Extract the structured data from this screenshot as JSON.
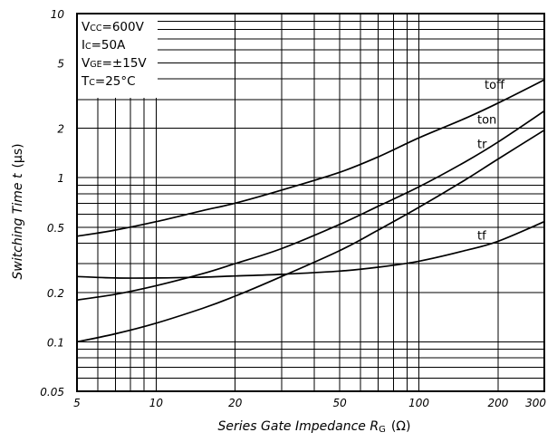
{
  "chart_data": {
    "type": "line",
    "x_scale": "log",
    "y_scale": "log",
    "xlim": [
      5,
      300
    ],
    "ylim": [
      0.05,
      10
    ],
    "grid": true,
    "xlabel": {
      "main": "Series Gate Impedance R",
      "subscript": "G",
      "unit": "(Ω)"
    },
    "ylabel": {
      "main": "Switching Time t",
      "unit": "(μs)"
    },
    "x_ticks": [
      {
        "value": 5,
        "label": "5"
      },
      {
        "value": 10,
        "label": "10"
      },
      {
        "value": 20,
        "label": "20"
      },
      {
        "value": 50,
        "label": "50"
      },
      {
        "value": 100,
        "label": "100"
      },
      {
        "value": 200,
        "label": "200"
      },
      {
        "value": 300,
        "label": "300"
      }
    ],
    "y_ticks": [
      {
        "value": 0.05,
        "label": "0.05"
      },
      {
        "value": 0.1,
        "label": "0.1"
      },
      {
        "value": 0.2,
        "label": "0.2"
      },
      {
        "value": 0.5,
        "label": "0.5"
      },
      {
        "value": 1,
        "label": "1"
      },
      {
        "value": 2,
        "label": "2"
      },
      {
        "value": 5,
        "label": "5"
      },
      {
        "value": 10,
        "label": "10"
      }
    ],
    "conditions": [
      {
        "main": "V",
        "sub": "CC",
        "rest": "=600V"
      },
      {
        "main": "I",
        "sub": "C",
        "rest": "=50A"
      },
      {
        "main": "V",
        "sub": "GE",
        "rest": "=±15V"
      },
      {
        "main": "T",
        "sub": "C",
        "rest": "=25°C"
      }
    ],
    "series": [
      {
        "name": "toff",
        "x": [
          5,
          7,
          10,
          15,
          20,
          30,
          50,
          70,
          100,
          150,
          200,
          300
        ],
        "y": [
          0.44,
          0.48,
          0.54,
          0.63,
          0.7,
          0.84,
          1.08,
          1.34,
          1.75,
          2.3,
          2.85,
          3.95
        ]
      },
      {
        "name": "ton",
        "x": [
          5,
          7,
          10,
          15,
          20,
          30,
          50,
          70,
          100,
          150,
          200,
          300
        ],
        "y": [
          0.18,
          0.195,
          0.22,
          0.26,
          0.3,
          0.37,
          0.52,
          0.67,
          0.88,
          1.25,
          1.65,
          2.55
        ]
      },
      {
        "name": "tr",
        "x": [
          5,
          7,
          10,
          15,
          20,
          30,
          50,
          70,
          100,
          150,
          200,
          300
        ],
        "y": [
          0.1,
          0.112,
          0.13,
          0.16,
          0.19,
          0.25,
          0.36,
          0.48,
          0.66,
          0.97,
          1.3,
          1.95
        ]
      },
      {
        "name": "tf",
        "x": [
          5,
          7,
          10,
          15,
          20,
          30,
          50,
          70,
          100,
          150,
          200,
          300
        ],
        "y": [
          0.25,
          0.245,
          0.245,
          0.248,
          0.252,
          0.258,
          0.27,
          0.285,
          0.31,
          0.36,
          0.41,
          0.54
        ]
      }
    ]
  }
}
